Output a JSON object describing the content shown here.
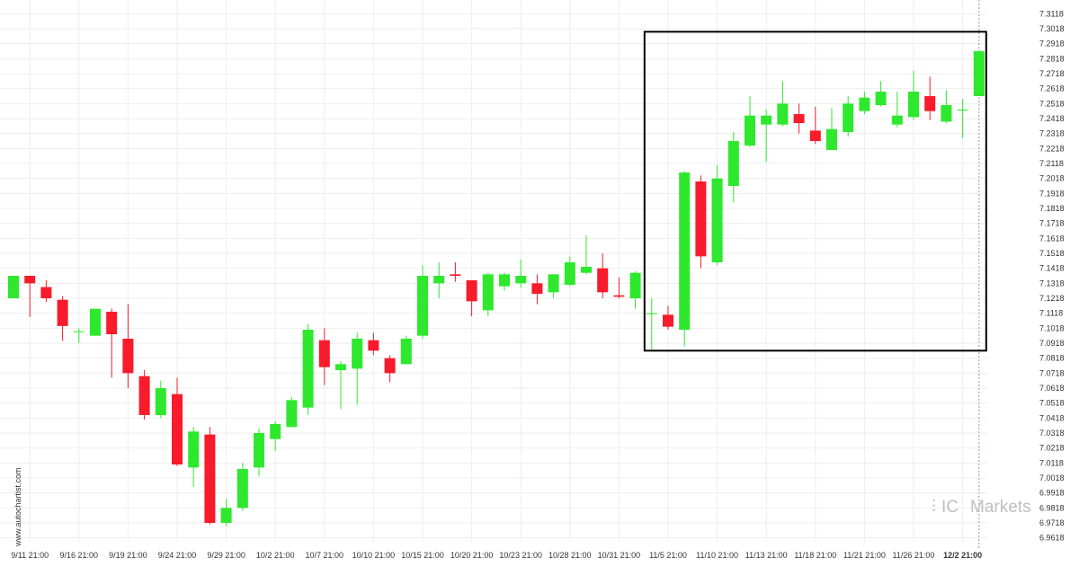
{
  "chart_data": {
    "type": "candlestick",
    "ylim": [
      6.9568,
      7.3168
    ],
    "y_ticks": [
      "7.3118",
      "7.3018",
      "7.2918",
      "7.2818",
      "7.2718",
      "7.2618",
      "7.2518",
      "7.2418",
      "7.2318",
      "7.2218",
      "7.2118",
      "7.2018",
      "7.1918",
      "7.1818",
      "7.1718",
      "7.1618",
      "7.1518",
      "7.1418",
      "7.1318",
      "7.1218",
      "7.1118",
      "7.1018",
      "7.0918",
      "7.0818",
      "7.0718",
      "7.0618",
      "7.0518",
      "7.0418",
      "7.0318",
      "7.0218",
      "7.0118",
      "7.0018",
      "6.9918",
      "6.9818",
      "6.9718",
      "6.9618"
    ],
    "x_labels": [
      "9/11 21:00",
      "9/16 21:00",
      "9/19 21:00",
      "9/24 21:00",
      "9/29 21:00",
      "10/2 21:00",
      "10/7 21:00",
      "10/10 21:00",
      "10/15 21:00",
      "10/20 21:00",
      "10/23 21:00",
      "10/28 21:00",
      "10/31 21:00",
      "11/5 21:00",
      "11/10 21:00",
      "11/13 21:00",
      "11/18 21:00",
      "11/21 21:00",
      "11/26 21:00",
      "12/2 21:00"
    ],
    "x_label_candle_index": [
      1,
      4,
      7,
      10,
      13,
      16,
      19,
      22,
      25,
      28,
      31,
      34,
      37,
      40,
      43,
      46,
      49,
      52,
      55,
      58
    ],
    "highlight_x_label": "12/2 21:00",
    "candles": [
      {
        "o": 7.1218,
        "h": 7.1368,
        "l": 7.1218,
        "c": 7.1368
      },
      {
        "o": 7.1368,
        "h": 7.1368,
        "l": 7.1093,
        "c": 7.1318
      },
      {
        "o": 7.1293,
        "h": 7.1338,
        "l": 7.1193,
        "c": 7.1218
      },
      {
        "o": 7.1208,
        "h": 7.1233,
        "l": 7.0933,
        "c": 7.1033
      },
      {
        "o": 7.0998,
        "h": 7.1018,
        "l": 7.0918,
        "c": 7.0998
      },
      {
        "o": 7.0968,
        "h": 7.1148,
        "l": 7.0968,
        "c": 7.1148
      },
      {
        "o": 7.1128,
        "h": 7.1148,
        "l": 7.0688,
        "c": 7.0978
      },
      {
        "o": 7.0948,
        "h": 7.1178,
        "l": 7.0618,
        "c": 7.0718
      },
      {
        "o": 7.0698,
        "h": 7.0738,
        "l": 7.0408,
        "c": 7.0438
      },
      {
        "o": 7.0438,
        "h": 7.0668,
        "l": 7.0418,
        "c": 7.0618
      },
      {
        "o": 7.0578,
        "h": 7.0688,
        "l": 7.0098,
        "c": 7.0108
      },
      {
        "o": 7.0088,
        "h": 7.0358,
        "l": 6.9958,
        "c": 7.0328
      },
      {
        "o": 7.0308,
        "h": 7.0358,
        "l": 6.9708,
        "c": 6.9718
      },
      {
        "o": 6.9718,
        "h": 6.9878,
        "l": 6.9698,
        "c": 6.9818
      },
      {
        "o": 6.9818,
        "h": 7.0118,
        "l": 6.9798,
        "c": 7.0078
      },
      {
        "o": 7.0088,
        "h": 7.0348,
        "l": 7.0028,
        "c": 7.0318
      },
      {
        "o": 7.0278,
        "h": 7.0398,
        "l": 7.0198,
        "c": 7.0378
      },
      {
        "o": 7.0358,
        "h": 7.0558,
        "l": 7.0358,
        "c": 7.0538
      },
      {
        "o": 7.0488,
        "h": 7.1048,
        "l": 7.0438,
        "c": 7.1008
      },
      {
        "o": 7.0938,
        "h": 7.1018,
        "l": 7.0638,
        "c": 7.0758
      },
      {
        "o": 7.0738,
        "h": 7.0798,
        "l": 7.0478,
        "c": 7.0778
      },
      {
        "o": 7.0748,
        "h": 7.0988,
        "l": 7.0508,
        "c": 7.0948
      },
      {
        "o": 7.0938,
        "h": 7.0988,
        "l": 7.0838,
        "c": 7.0868
      },
      {
        "o": 7.0818,
        "h": 7.0838,
        "l": 7.0658,
        "c": 7.0718
      },
      {
        "o": 7.0778,
        "h": 7.0968,
        "l": 7.0778,
        "c": 7.0948
      },
      {
        "o": 7.0968,
        "h": 7.1438,
        "l": 7.0948,
        "c": 7.1368
      },
      {
        "o": 7.1318,
        "h": 7.1458,
        "l": 7.1218,
        "c": 7.1368
      },
      {
        "o": 7.1378,
        "h": 7.1458,
        "l": 7.1328,
        "c": 7.1368
      },
      {
        "o": 7.1338,
        "h": 7.1338,
        "l": 7.1098,
        "c": 7.1198
      },
      {
        "o": 7.1138,
        "h": 7.1388,
        "l": 7.1098,
        "c": 7.1378
      },
      {
        "o": 7.1298,
        "h": 7.1388,
        "l": 7.1268,
        "c": 7.1378
      },
      {
        "o": 7.1318,
        "h": 7.1478,
        "l": 7.1288,
        "c": 7.1368
      },
      {
        "o": 7.1318,
        "h": 7.1378,
        "l": 7.1178,
        "c": 7.1248
      },
      {
        "o": 7.1258,
        "h": 7.1378,
        "l": 7.1218,
        "c": 7.1378
      },
      {
        "o": 7.1308,
        "h": 7.1498,
        "l": 7.1298,
        "c": 7.1458
      },
      {
        "o": 7.1388,
        "h": 7.1638,
        "l": 7.1378,
        "c": 7.1428
      },
      {
        "o": 7.1418,
        "h": 7.1518,
        "l": 7.1218,
        "c": 7.1258
      },
      {
        "o": 7.1238,
        "h": 7.1358,
        "l": 7.1218,
        "c": 7.1228
      },
      {
        "o": 7.1218,
        "h": 7.1398,
        "l": 7.1148,
        "c": 7.1388
      },
      {
        "o": 7.1118,
        "h": 7.1218,
        "l": 7.0868,
        "c": 7.1118
      },
      {
        "o": 7.1108,
        "h": 7.1168,
        "l": 7.1008,
        "c": 7.1028
      },
      {
        "o": 7.1008,
        "h": 7.2068,
        "l": 7.0898,
        "c": 7.2058
      },
      {
        "o": 7.1998,
        "h": 7.2038,
        "l": 7.1418,
        "c": 7.1498
      },
      {
        "o": 7.1458,
        "h": 7.2108,
        "l": 7.1438,
        "c": 7.2018
      },
      {
        "o": 7.1968,
        "h": 7.2328,
        "l": 7.1858,
        "c": 7.2268
      },
      {
        "o": 7.2238,
        "h": 7.2568,
        "l": 7.2228,
        "c": 7.2438
      },
      {
        "o": 7.2378,
        "h": 7.2478,
        "l": 7.2128,
        "c": 7.2438
      },
      {
        "o": 7.2378,
        "h": 7.2668,
        "l": 7.2368,
        "c": 7.2518
      },
      {
        "o": 7.2448,
        "h": 7.2518,
        "l": 7.2318,
        "c": 7.2388
      },
      {
        "o": 7.2338,
        "h": 7.2498,
        "l": 7.2248,
        "c": 7.2268
      },
      {
        "o": 7.2208,
        "h": 7.2488,
        "l": 7.2208,
        "c": 7.2348
      },
      {
        "o": 7.2328,
        "h": 7.2568,
        "l": 7.2298,
        "c": 7.2518
      },
      {
        "o": 7.2468,
        "h": 7.2598,
        "l": 7.2448,
        "c": 7.2558
      },
      {
        "o": 7.2508,
        "h": 7.2668,
        "l": 7.2498,
        "c": 7.2598
      },
      {
        "o": 7.2378,
        "h": 7.2598,
        "l": 7.2358,
        "c": 7.2438
      },
      {
        "o": 7.2428,
        "h": 7.2738,
        "l": 7.2408,
        "c": 7.2598
      },
      {
        "o": 7.2568,
        "h": 7.2698,
        "l": 7.2408,
        "c": 7.2468
      },
      {
        "o": 7.2398,
        "h": 7.2608,
        "l": 7.2388,
        "c": 7.2508
      },
      {
        "o": 7.2478,
        "h": 7.2548,
        "l": 7.2288,
        "c": 7.2478
      },
      {
        "o": 7.2568,
        "h": 7.2878,
        "l": 7.2568,
        "c": 7.2868
      }
    ],
    "highlight_range": {
      "from_index": 39,
      "to_index": 59,
      "low": 7.0868,
      "high": 7.2998
    },
    "colors": {
      "up": "#2ee82e",
      "down": "#f71b2b",
      "box": "#000000",
      "grid": "#eeeeee"
    }
  },
  "watermark": {
    "side_text": "www.autochartist.com",
    "brand_prefix": "IC",
    "brand_suffix": "Markets"
  }
}
